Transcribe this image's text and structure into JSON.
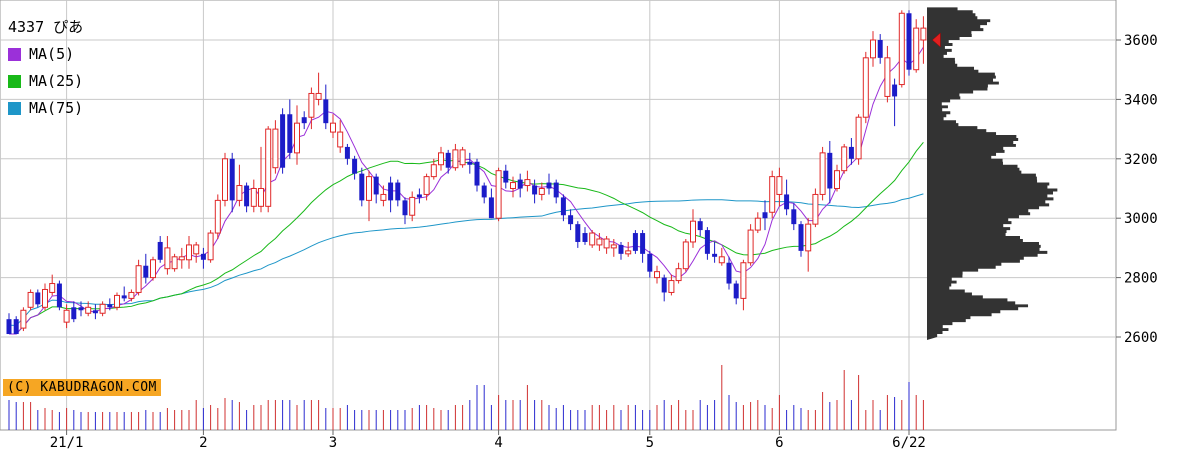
{
  "chart_data": {
    "type": "candlestick",
    "title": "4337 ぴあ",
    "legend": [
      {
        "label": "MA(5)",
        "color": "#9b30d9"
      },
      {
        "label": "MA(25)",
        "color": "#19b919"
      },
      {
        "label": "MA(75)",
        "color": "#1e96c8"
      }
    ],
    "credit": "(C) KABUDRAGON.COM",
    "y_ticks": [
      2600,
      2800,
      3000,
      3200,
      3400,
      3600
    ],
    "ylim": [
      2550,
      3720
    ],
    "x_tick_labels": [
      {
        "label": "21/1",
        "index": 8
      },
      {
        "label": "2",
        "index": 27
      },
      {
        "label": "3",
        "index": 45
      },
      {
        "label": "4",
        "index": 68
      },
      {
        "label": "5",
        "index": 89
      },
      {
        "label": "6",
        "index": 107
      },
      {
        "label": "6/22",
        "index": 125
      }
    ],
    "candles": [
      [
        2660,
        2680,
        2620,
        2610,
        1
      ],
      [
        2660,
        2670,
        2620,
        2610,
        1
      ],
      [
        2630,
        2700,
        2620,
        2690,
        0
      ],
      [
        2700,
        2760,
        2690,
        2750,
        0
      ],
      [
        2750,
        2760,
        2700,
        2710,
        1
      ],
      [
        2700,
        2780,
        2690,
        2760,
        0
      ],
      [
        2750,
        2810,
        2740,
        2780,
        0
      ],
      [
        2780,
        2790,
        2690,
        2700,
        1
      ],
      [
        2690,
        2710,
        2630,
        2650,
        0
      ],
      [
        2660,
        2720,
        2650,
        2700,
        1
      ],
      [
        2700,
        2720,
        2670,
        2690,
        1
      ],
      [
        2680,
        2720,
        2670,
        2700,
        0
      ],
      [
        2690,
        2710,
        2660,
        2680,
        1
      ],
      [
        2680,
        2720,
        2670,
        2710,
        0
      ],
      [
        2710,
        2730,
        2690,
        2700,
        1
      ],
      [
        2700,
        2750,
        2690,
        2740,
        0
      ],
      [
        2740,
        2770,
        2720,
        2730,
        1
      ],
      [
        2730,
        2760,
        2720,
        2750,
        0
      ],
      [
        2750,
        2860,
        2740,
        2840,
        0
      ],
      [
        2840,
        2880,
        2780,
        2800,
        1
      ],
      [
        2800,
        2870,
        2790,
        2860,
        0
      ],
      [
        2860,
        2940,
        2850,
        2920,
        1
      ],
      [
        2900,
        2940,
        2810,
        2830,
        0
      ],
      [
        2830,
        2880,
        2820,
        2870,
        0
      ],
      [
        2870,
        2900,
        2830,
        2860,
        0
      ],
      [
        2860,
        2940,
        2830,
        2910,
        0
      ],
      [
        2910,
        2920,
        2850,
        2880,
        0
      ],
      [
        2880,
        2900,
        2830,
        2860,
        1
      ],
      [
        2860,
        2960,
        2850,
        2950,
        0
      ],
      [
        2950,
        3080,
        2930,
        3060,
        0
      ],
      [
        3060,
        3220,
        3040,
        3200,
        0
      ],
      [
        3200,
        3220,
        3020,
        3060,
        1
      ],
      [
        3060,
        3180,
        3040,
        3110,
        0
      ],
      [
        3110,
        3120,
        3020,
        3040,
        1
      ],
      [
        3040,
        3130,
        3020,
        3100,
        0
      ],
      [
        3100,
        3240,
        3020,
        3040,
        0
      ],
      [
        3040,
        3310,
        3020,
        3300,
        0
      ],
      [
        3300,
        3330,
        3150,
        3170,
        0
      ],
      [
        3170,
        3370,
        3150,
        3350,
        1
      ],
      [
        3350,
        3400,
        3200,
        3220,
        1
      ],
      [
        3220,
        3380,
        3180,
        3320,
        0
      ],
      [
        3320,
        3360,
        3300,
        3340,
        1
      ],
      [
        3340,
        3440,
        3300,
        3420,
        0
      ],
      [
        3420,
        3490,
        3380,
        3400,
        0
      ],
      [
        3400,
        3450,
        3300,
        3320,
        1
      ],
      [
        3320,
        3350,
        3270,
        3290,
        0
      ],
      [
        3290,
        3330,
        3220,
        3240,
        0
      ],
      [
        3240,
        3250,
        3180,
        3200,
        1
      ],
      [
        3200,
        3210,
        3130,
        3150,
        1
      ],
      [
        3150,
        3170,
        3040,
        3060,
        1
      ],
      [
        3060,
        3160,
        2990,
        3140,
        0
      ],
      [
        3140,
        3150,
        3050,
        3080,
        1
      ],
      [
        3080,
        3110,
        3040,
        3060,
        0
      ],
      [
        3060,
        3140,
        3020,
        3120,
        1
      ],
      [
        3120,
        3130,
        3040,
        3060,
        1
      ],
      [
        3060,
        3070,
        2980,
        3010,
        1
      ],
      [
        3010,
        3090,
        2990,
        3070,
        0
      ],
      [
        3070,
        3100,
        3050,
        3080,
        1
      ],
      [
        3080,
        3150,
        3060,
        3140,
        0
      ],
      [
        3140,
        3200,
        3130,
        3180,
        0
      ],
      [
        3180,
        3240,
        3160,
        3220,
        0
      ],
      [
        3220,
        3230,
        3150,
        3170,
        1
      ],
      [
        3170,
        3250,
        3160,
        3230,
        0
      ],
      [
        3230,
        3240,
        3170,
        3180,
        0
      ],
      [
        3180,
        3220,
        3150,
        3190,
        1
      ],
      [
        3190,
        3200,
        3090,
        3110,
        1
      ],
      [
        3110,
        3120,
        3050,
        3070,
        1
      ],
      [
        3070,
        3100,
        3000,
        3000,
        1
      ],
      [
        3000,
        3170,
        2990,
        3160,
        0
      ],
      [
        3160,
        3180,
        3100,
        3120,
        1
      ],
      [
        3120,
        3140,
        3070,
        3100,
        0
      ],
      [
        3100,
        3150,
        3070,
        3130,
        1
      ],
      [
        3130,
        3160,
        3090,
        3110,
        0
      ],
      [
        3110,
        3130,
        3050,
        3080,
        1
      ],
      [
        3080,
        3120,
        3060,
        3100,
        0
      ],
      [
        3100,
        3150,
        3080,
        3120,
        1
      ],
      [
        3120,
        3130,
        3050,
        3070,
        1
      ],
      [
        3070,
        3080,
        2990,
        3010,
        1
      ],
      [
        3010,
        3030,
        2960,
        2980,
        1
      ],
      [
        2980,
        2990,
        2900,
        2920,
        1
      ],
      [
        2920,
        2970,
        2910,
        2950,
        1
      ],
      [
        2950,
        2960,
        2900,
        2910,
        0
      ],
      [
        2910,
        2950,
        2890,
        2930,
        0
      ],
      [
        2930,
        2940,
        2880,
        2900,
        0
      ],
      [
        2900,
        2930,
        2870,
        2910,
        0
      ],
      [
        2910,
        2920,
        2860,
        2880,
        1
      ],
      [
        2880,
        2920,
        2870,
        2890,
        0
      ],
      [
        2890,
        2960,
        2880,
        2950,
        1
      ],
      [
        2950,
        2960,
        2850,
        2880,
        1
      ],
      [
        2880,
        2890,
        2800,
        2820,
        1
      ],
      [
        2820,
        2840,
        2780,
        2800,
        0
      ],
      [
        2800,
        2810,
        2720,
        2750,
        1
      ],
      [
        2750,
        2810,
        2740,
        2790,
        0
      ],
      [
        2790,
        2850,
        2780,
        2830,
        0
      ],
      [
        2830,
        2930,
        2820,
        2920,
        0
      ],
      [
        2920,
        3030,
        2900,
        2990,
        0
      ],
      [
        2990,
        3000,
        2940,
        2960,
        1
      ],
      [
        2960,
        2970,
        2860,
        2880,
        1
      ],
      [
        2880,
        2920,
        2850,
        2870,
        1
      ],
      [
        2870,
        2900,
        2840,
        2850,
        0
      ],
      [
        2850,
        2870,
        2760,
        2780,
        1
      ],
      [
        2780,
        2790,
        2710,
        2730,
        1
      ],
      [
        2730,
        2860,
        2690,
        2850,
        0
      ],
      [
        2850,
        2980,
        2840,
        2960,
        0
      ],
      [
        2960,
        3020,
        2950,
        3000,
        0
      ],
      [
        3000,
        3060,
        2960,
        3020,
        1
      ],
      [
        3020,
        3160,
        3000,
        3140,
        0
      ],
      [
        3140,
        3170,
        3040,
        3080,
        0
      ],
      [
        3080,
        3130,
        3010,
        3030,
        1
      ],
      [
        3030,
        3050,
        2960,
        2980,
        1
      ],
      [
        2980,
        2990,
        2870,
        2890,
        1
      ],
      [
        2890,
        3000,
        2820,
        2980,
        0
      ],
      [
        2980,
        3100,
        2970,
        3080,
        0
      ],
      [
        3080,
        3240,
        3060,
        3220,
        0
      ],
      [
        3220,
        3260,
        3050,
        3100,
        1
      ],
      [
        3100,
        3180,
        3090,
        3160,
        0
      ],
      [
        3160,
        3250,
        3150,
        3240,
        0
      ],
      [
        3240,
        3270,
        3180,
        3200,
        1
      ],
      [
        3200,
        3350,
        3180,
        3340,
        0
      ],
      [
        3340,
        3560,
        3320,
        3540,
        0
      ],
      [
        3540,
        3630,
        3510,
        3600,
        0
      ],
      [
        3600,
        3620,
        3520,
        3540,
        1
      ],
      [
        3540,
        3580,
        3390,
        3410,
        0
      ],
      [
        3410,
        3470,
        3310,
        3450,
        1
      ],
      [
        3450,
        3700,
        3440,
        3690,
        0
      ],
      [
        3690,
        3700,
        3480,
        3500,
        1
      ],
      [
        3500,
        3670,
        3490,
        3640,
        0
      ],
      [
        3640,
        3680,
        3520,
        3600,
        0
      ]
    ],
    "volumes": [
      0.3,
      0.28,
      0.28,
      0.28,
      0.2,
      0.22,
      0.2,
      0.18,
      0.22,
      0.2,
      0.18,
      0.18,
      0.18,
      0.18,
      0.18,
      0.18,
      0.18,
      0.18,
      0.18,
      0.2,
      0.18,
      0.18,
      0.22,
      0.2,
      0.2,
      0.2,
      0.3,
      0.22,
      0.25,
      0.22,
      0.32,
      0.3,
      0.28,
      0.2,
      0.25,
      0.25,
      0.3,
      0.3,
      0.3,
      0.3,
      0.25,
      0.3,
      0.3,
      0.3,
      0.22,
      0.22,
      0.22,
      0.25,
      0.2,
      0.2,
      0.2,
      0.2,
      0.2,
      0.2,
      0.2,
      0.2,
      0.22,
      0.25,
      0.25,
      0.22,
      0.2,
      0.2,
      0.25,
      0.25,
      0.3,
      0.45,
      0.45,
      0.25,
      0.35,
      0.3,
      0.3,
      0.3,
      0.45,
      0.3,
      0.3,
      0.25,
      0.22,
      0.25,
      0.2,
      0.2,
      0.2,
      0.25,
      0.25,
      0.2,
      0.25,
      0.2,
      0.25,
      0.25,
      0.2,
      0.2,
      0.25,
      0.3,
      0.25,
      0.3,
      0.2,
      0.2,
      0.3,
      0.25,
      0.3,
      0.65,
      0.35,
      0.28,
      0.25,
      0.28,
      0.3,
      0.25,
      0.22,
      0.35,
      0.2,
      0.25,
      0.22,
      0.2,
      0.2,
      0.38,
      0.28,
      0.3,
      0.6,
      0.3,
      0.55,
      0.2,
      0.3,
      0.2,
      0.35,
      0.33,
      0.3,
      0.48,
      0.35,
      0.3
    ]
  }
}
